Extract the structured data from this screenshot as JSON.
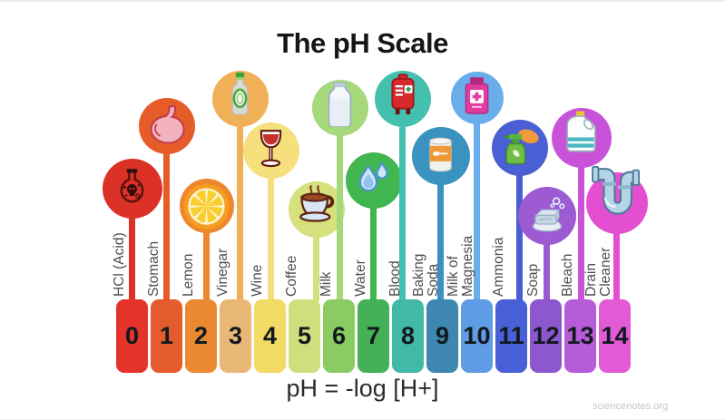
{
  "title": "The pH Scale",
  "formula": "pH = -log [H+]",
  "watermark": "sciencenotes.org",
  "scale": {
    "items": [
      {
        "ph": "0",
        "label": "HCl (Acid)",
        "icon": "flask-skull-icon",
        "circle_color": "#dc3127",
        "block_color": "#e5332b"
      },
      {
        "ph": "1",
        "label": "Stomach",
        "icon": "stomach-icon",
        "circle_color": "#e65c29",
        "block_color": "#e45b2d"
      },
      {
        "ph": "2",
        "label": "Lemon",
        "icon": "lemon-slice-icon",
        "circle_color": "#ee862d",
        "block_color": "#e98a31"
      },
      {
        "ph": "3",
        "label": "Vinegar",
        "icon": "vinegar-bottle-icon",
        "circle_color": "#f0b057",
        "block_color": "#e9b877"
      },
      {
        "ph": "4",
        "label": "Wine",
        "icon": "wine-glass-icon",
        "circle_color": "#f5e07d",
        "block_color": "#f3da64"
      },
      {
        "ph": "5",
        "label": "Coffee",
        "icon": "coffee-cup-icon",
        "circle_color": "#d6e07c",
        "block_color": "#cfdf7d"
      },
      {
        "ph": "6",
        "label": "Milk",
        "icon": "milk-bottle-icon",
        "circle_color": "#a6d87c",
        "block_color": "#8bcc62"
      },
      {
        "ph": "7",
        "label": "Water",
        "icon": "water-drops-icon",
        "circle_color": "#41b54f",
        "block_color": "#44b156"
      },
      {
        "ph": "8",
        "label": "Blood",
        "icon": "blood-bag-icon",
        "circle_color": "#43c0ae",
        "block_color": "#41b9a6"
      },
      {
        "ph": "9",
        "label": "Baking Soda",
        "icon": "baking-soda-can-icon",
        "circle_color": "#3a92c0",
        "block_color": "#3d87b0"
      },
      {
        "ph": "10",
        "label": "Milk of Magnesia",
        "icon": "magnesia-bottle-icon",
        "circle_color": "#69aeea",
        "block_color": "#5e9de5"
      },
      {
        "ph": "11",
        "label": "Ammonia",
        "icon": "ammonia-spray-icon",
        "circle_color": "#4a5fd3",
        "block_color": "#4961d6"
      },
      {
        "ph": "12",
        "label": "Soap",
        "icon": "soap-bar-icon",
        "circle_color": "#9c5ad3",
        "block_color": "#8d57cf"
      },
      {
        "ph": "13",
        "label": "Bleach",
        "icon": "bleach-bottle-icon",
        "circle_color": "#c852d8",
        "block_color": "#b75cd8"
      },
      {
        "ph": "14",
        "label": "Drain Cleaner",
        "icon": "drain-pipe-icon",
        "circle_color": "#e44fd1",
        "block_color": "#e25ad6"
      }
    ]
  }
}
